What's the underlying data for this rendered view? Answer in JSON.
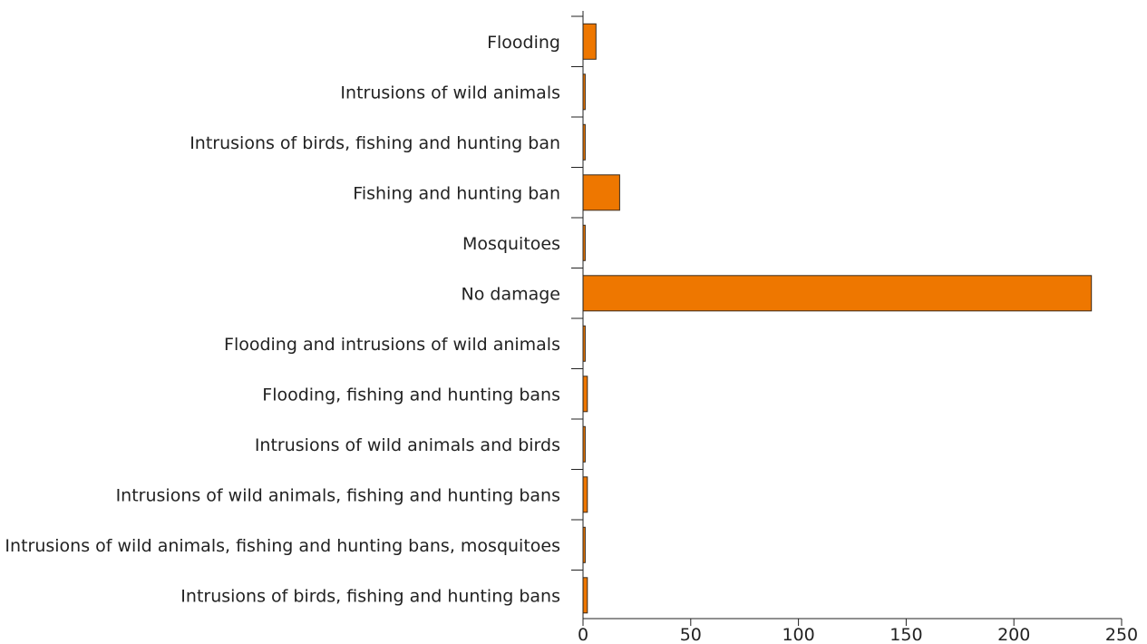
{
  "colors": {
    "bar_fill": "#ee7700",
    "bar_stroke": "#3a2a1a",
    "axis": "#222222",
    "text": "#222222"
  },
  "chart_data": {
    "type": "bar",
    "orientation": "horizontal",
    "title": "",
    "xlabel": "",
    "ylabel": "",
    "xlim": [
      0,
      250
    ],
    "x_ticks": [
      "0",
      "50",
      "100",
      "150",
      "200",
      "250"
    ],
    "x_tick_values": [
      0,
      50,
      100,
      150,
      200,
      250
    ],
    "grid": false,
    "legend": "none",
    "categories": [
      "Flooding",
      "Intrusions of wild animals",
      "Intrusions of birds, fishing and hunting ban",
      "Fishing and hunting ban",
      "Mosquitoes",
      "No damage",
      "Flooding and intrusions of wild animals",
      "Flooding, fishing and hunting bans",
      "Intrusions of wild animals and birds",
      "Intrusions of wild animals, fishing and hunting bans",
      "Intrusions of wild animals, fishing and hunting bans, mosquitoes",
      "Intrusions of birds, fishing and hunting bans"
    ],
    "values": [
      6,
      1,
      1,
      17,
      1,
      236,
      1,
      2,
      1,
      2,
      1,
      2
    ]
  }
}
